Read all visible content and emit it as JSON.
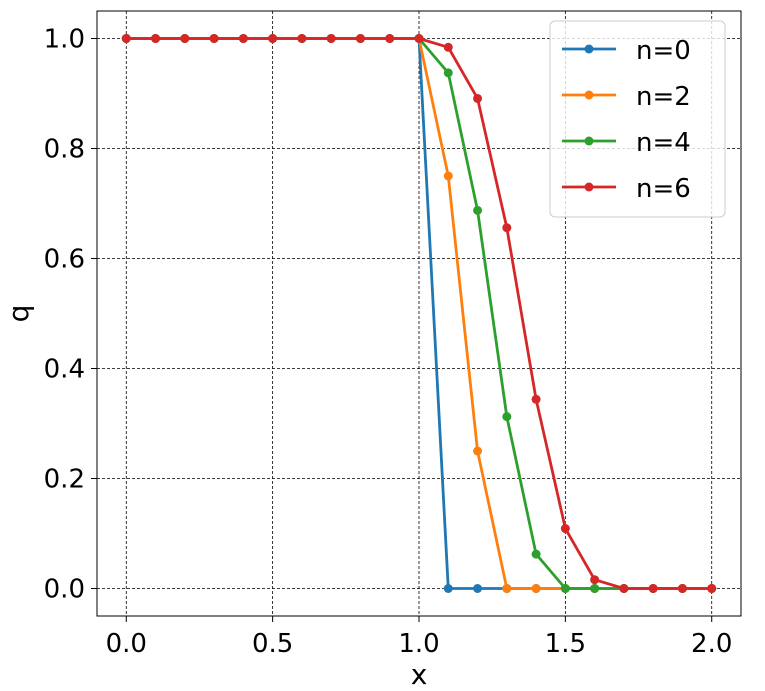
{
  "chart_data": {
    "type": "line",
    "title": "",
    "xlabel": "x",
    "ylabel": "q",
    "xlim": [
      -0.1,
      2.1
    ],
    "ylim": [
      -0.05,
      1.05
    ],
    "xticks": [
      0.0,
      0.5,
      1.0,
      1.5,
      2.0
    ],
    "xtick_labels": [
      "0.0",
      "0.5",
      "1.0",
      "1.5",
      "2.0"
    ],
    "yticks": [
      0.0,
      0.2,
      0.4,
      0.6,
      0.8,
      1.0
    ],
    "ytick_labels": [
      "0.0",
      "0.2",
      "0.4",
      "0.6",
      "0.8",
      "1.0"
    ],
    "grid": true,
    "legend_position": "top-right",
    "x": [
      0.0,
      0.1,
      0.2,
      0.3,
      0.4,
      0.5,
      0.6,
      0.7,
      0.8,
      0.9,
      1.0,
      1.1,
      1.2,
      1.3,
      1.4,
      1.5,
      1.6,
      1.7,
      1.8,
      1.9,
      2.0
    ],
    "series": [
      {
        "name": "n=0",
        "color": "#1f77b4",
        "values": [
          1,
          1,
          1,
          1,
          1,
          1,
          1,
          1,
          1,
          1,
          1,
          0,
          0,
          0,
          0,
          0,
          0,
          0,
          0,
          0,
          0
        ]
      },
      {
        "name": "n=2",
        "color": "#ff7f0e",
        "values": [
          1,
          1,
          1,
          1,
          1,
          1,
          1,
          1,
          1,
          1,
          1,
          0.75,
          0.25,
          0,
          0,
          0,
          0,
          0,
          0,
          0,
          0
        ]
      },
      {
        "name": "n=4",
        "color": "#2ca02c",
        "values": [
          1,
          1,
          1,
          1,
          1,
          1,
          1,
          1,
          1,
          1,
          1,
          0.9375,
          0.6875,
          0.3125,
          0.0625,
          0,
          0,
          0,
          0,
          0,
          0
        ]
      },
      {
        "name": "n=6",
        "color": "#d62728",
        "values": [
          1,
          1,
          1,
          1,
          1,
          1,
          1,
          1,
          1,
          1,
          1,
          0.984,
          0.891,
          0.656,
          0.344,
          0.109,
          0.016,
          0,
          0,
          0,
          0
        ]
      }
    ]
  }
}
